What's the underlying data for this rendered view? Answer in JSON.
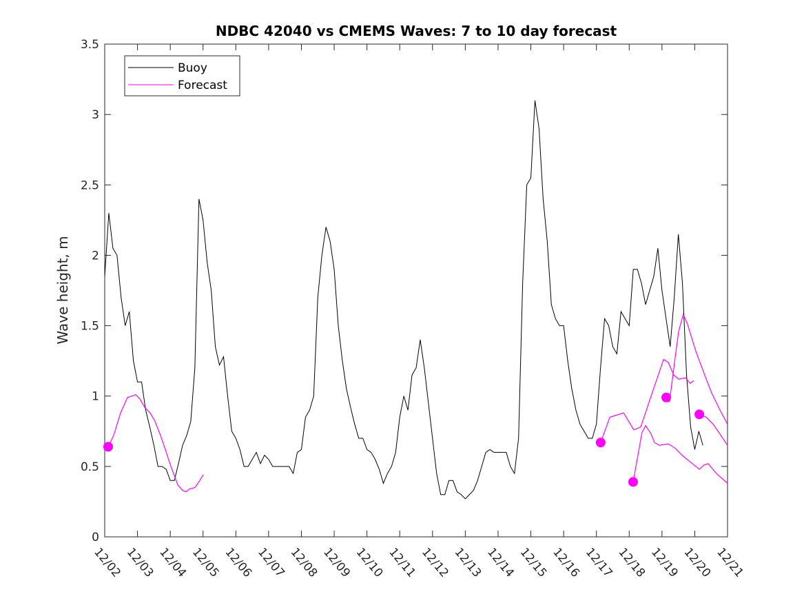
{
  "chart_data": {
    "type": "line",
    "title": "NDBC 42040 vs CMEMS Waves: 7 to 10 day forecast",
    "xlabel": "",
    "ylabel": "Wave height, m",
    "ylim": [
      0,
      3.5
    ],
    "xlim_days": [
      0,
      19
    ],
    "x_unit": "days since 12/02 00:00",
    "x_tick_labels": [
      "12/02",
      "12/03",
      "12/04",
      "12/05",
      "12/06",
      "12/07",
      "12/08",
      "12/09",
      "12/10",
      "12/11",
      "12/12",
      "12/13",
      "12/14",
      "12/15",
      "12/16",
      "12/17",
      "12/18",
      "12/19",
      "12/20",
      "12/21"
    ],
    "y_ticks": [
      0,
      0.5,
      1,
      1.5,
      2,
      2.5,
      3,
      3.5
    ],
    "y_tick_labels": [
      "0",
      "0.5",
      "1",
      "1.5",
      "2",
      "2.5",
      "3",
      "3.5"
    ],
    "legend": {
      "placement": "top-left",
      "entries": [
        "Buoy",
        "Forecast"
      ]
    },
    "colors": {
      "buoy": "#000000",
      "forecast": "#ff00ff"
    },
    "buoy": {
      "name": "Buoy",
      "step_days": 0.125,
      "values": [
        1.85,
        2.3,
        2.05,
        2.0,
        1.7,
        1.5,
        1.6,
        1.25,
        1.1,
        1.1,
        0.9,
        0.78,
        0.65,
        0.5,
        0.5,
        0.48,
        0.4,
        0.4,
        0.52,
        0.65,
        0.72,
        0.82,
        1.2,
        2.4,
        2.25,
        1.95,
        1.75,
        1.35,
        1.22,
        1.28,
        1.0,
        0.75,
        0.7,
        0.62,
        0.5,
        0.5,
        0.55,
        0.6,
        0.52,
        0.58,
        0.55,
        0.5,
        0.5,
        0.5,
        0.5,
        0.5,
        0.45,
        0.6,
        0.62,
        0.85,
        0.9,
        1.0,
        1.7,
        2.0,
        2.2,
        2.1,
        1.9,
        1.5,
        1.25,
        1.05,
        0.92,
        0.8,
        0.7,
        0.7,
        0.62,
        0.6,
        0.55,
        0.48,
        0.38,
        0.45,
        0.5,
        0.6,
        0.85,
        1.0,
        0.9,
        1.15,
        1.2,
        1.4,
        1.2,
        0.95,
        0.7,
        0.45,
        0.3,
        0.3,
        0.4,
        0.4,
        0.32,
        0.3,
        0.27,
        0.3,
        0.33,
        0.4,
        0.5,
        0.6,
        0.62,
        0.6,
        0.6,
        0.6,
        0.6,
        0.5,
        0.45,
        0.7,
        1.8,
        2.5,
        2.55,
        3.1,
        2.9,
        2.4,
        2.1,
        1.65,
        1.55,
        1.5,
        1.5,
        1.25,
        1.05,
        0.9,
        0.8,
        0.75,
        0.7,
        0.7,
        0.8,
        1.2,
        1.55,
        1.5,
        1.35,
        1.3,
        1.6,
        1.55,
        1.5,
        1.9,
        1.9,
        1.8,
        1.65,
        1.75,
        1.85,
        2.05,
        1.75,
        1.55,
        1.35,
        1.7,
        2.15,
        1.8,
        1.15,
        0.78,
        0.62,
        0.75,
        0.65
      ]
    },
    "forecast": {
      "name": "Forecast",
      "segments": [
        {
          "x": [
            0.105,
            0.273,
            0.483,
            0.694,
            0.841,
            0.946,
            1.072,
            1.219,
            1.387,
            1.534,
            1.702,
            1.85,
            2.018,
            2.228,
            2.375,
            2.48,
            2.585,
            2.753,
            2.9,
            3.005
          ],
          "y": [
            0.64,
            0.72,
            0.88,
            0.99,
            1.0,
            1.01,
            0.98,
            0.92,
            0.88,
            0.82,
            0.72,
            0.62,
            0.5,
            0.37,
            0.33,
            0.32,
            0.34,
            0.35,
            0.4,
            0.44
          ]
        },
        {
          "x": [
            15.13,
            15.41,
            15.83,
            16.14,
            16.35,
            16.77,
            17.05,
            17.19,
            17.36,
            17.51,
            17.72,
            17.86,
            17.97
          ],
          "y": [
            0.67,
            0.85,
            0.88,
            0.76,
            0.78,
            1.07,
            1.26,
            1.24,
            1.15,
            1.12,
            1.13,
            1.09,
            1.11
          ]
        },
        {
          "x": [
            16.12,
            16.39,
            16.5,
            16.67,
            16.77,
            16.92,
            17.19,
            17.4,
            17.61,
            17.82,
            18.14,
            18.28,
            18.41,
            18.66,
            19.0
          ],
          "y": [
            0.39,
            0.74,
            0.79,
            0.73,
            0.67,
            0.65,
            0.66,
            0.63,
            0.58,
            0.54,
            0.48,
            0.51,
            0.52,
            0.45,
            0.38
          ]
        },
        {
          "x": [
            17.13,
            17.23,
            17.4,
            17.51,
            17.65,
            17.78,
            18.03,
            18.35,
            18.52,
            18.77,
            19.0
          ],
          "y": [
            0.99,
            0.96,
            1.27,
            1.46,
            1.58,
            1.51,
            1.32,
            1.12,
            1.02,
            0.9,
            0.8
          ]
        },
        {
          "x": [
            18.14,
            18.35,
            18.56,
            18.77,
            19.0
          ],
          "y": [
            0.87,
            0.85,
            0.8,
            0.73,
            0.65
          ]
        }
      ]
    }
  }
}
